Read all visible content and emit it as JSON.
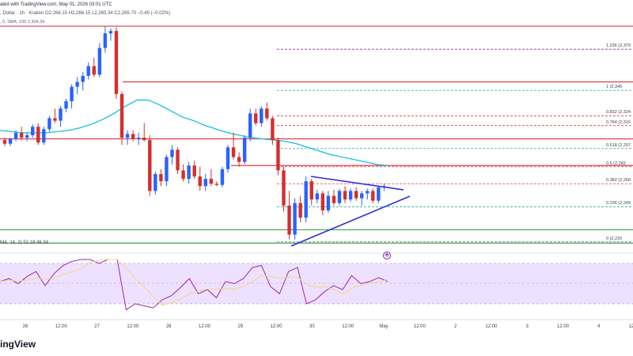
{
  "header": {
    "line1": "ated with TradingView.com, May 01, 2026 03:01 UTC",
    "line2": ", Dollar · 1h · Kraken  O2,266.15  H2,266.15  L2,265.34  C2,265.70  −0.45 (−0.02%)",
    "line3": ", 0, SMA, 100   2,304.34"
  },
  "colors": {
    "bull": "#2962ff",
    "bear": "#d32f2f",
    "sma": "#26c6da",
    "trendline": "#2f2fd9",
    "resistance": "#e03c4b",
    "support": "#43a047",
    "rsi_band": "#ede1ff",
    "rsi_line": "#9c27b0",
    "rsi_ma": "#f5d77d"
  },
  "fib_levels": [
    {
      "label": "1.236 (2,379",
      "value": 2379,
      "color": "#9c27b0"
    },
    {
      "label": "1 (2,345",
      "value": 2345,
      "color": "#26a69a"
    },
    {
      "label": "0.832 (2,324",
      "value": 2324,
      "color": "#e03c4b"
    },
    {
      "label": "0.764 (2,316",
      "value": 2316,
      "color": "#e03c4b"
    },
    {
      "label": "0.618 (2,297",
      "value": 2297,
      "color": "#26a69a"
    },
    {
      "label": "0.5 (2,282",
      "value": 2282,
      "color": "#e03c4b"
    },
    {
      "label": "0.382 (2,268",
      "value": 2268,
      "color": "#e03c4b"
    },
    {
      "label": "0.236 (2,249",
      "value": 2249,
      "color": "#26a69a"
    },
    {
      "label": "0 (2,220",
      "value": 2220,
      "color": "#757575"
    }
  ],
  "rsi": {
    "label": "MA, 14, 2)  52.18  46.34"
  },
  "x_ticks": [
    "26",
    "12:00",
    "27",
    "12:00",
    "28",
    "12:00",
    "29",
    "12:00",
    "30",
    "12:00",
    "May",
    "12:00",
    "2",
    "12:00",
    "3",
    "12:00",
    "4",
    "12:00"
  ],
  "brand": "ingView",
  "chart_data": {
    "type": "candlestick",
    "timeframe": "1h",
    "x_labels": [
      "26",
      "12:00",
      "27",
      "12:00",
      "28",
      "12:00",
      "29",
      "12:00",
      "30",
      "12:00",
      "May",
      "12:00",
      "2",
      "12:00",
      "3",
      "12:00",
      "4",
      "12:00"
    ],
    "y_range": [
      2212,
      2400
    ],
    "ohlc": [
      [
        2304,
        2306,
        2299,
        2301
      ],
      [
        2301,
        2306,
        2299,
        2305
      ],
      [
        2305,
        2312,
        2303,
        2310
      ],
      [
        2310,
        2315,
        2304,
        2306
      ],
      [
        2306,
        2310,
        2303,
        2308
      ],
      [
        2308,
        2317,
        2306,
        2315
      ],
      [
        2315,
        2318,
        2300,
        2302
      ],
      [
        2302,
        2315,
        2300,
        2313
      ],
      [
        2313,
        2324,
        2311,
        2322
      ],
      [
        2322,
        2330,
        2318,
        2320
      ],
      [
        2320,
        2332,
        2315,
        2330
      ],
      [
        2330,
        2338,
        2327,
        2336
      ],
      [
        2336,
        2350,
        2330,
        2348
      ],
      [
        2348,
        2356,
        2342,
        2352
      ],
      [
        2352,
        2360,
        2345,
        2357
      ],
      [
        2357,
        2368,
        2354,
        2365
      ],
      [
        2365,
        2372,
        2356,
        2358
      ],
      [
        2358,
        2384,
        2356,
        2380
      ],
      [
        2380,
        2398,
        2376,
        2392
      ],
      [
        2392,
        2396,
        2386,
        2394
      ],
      [
        2394,
        2397,
        2338,
        2342
      ],
      [
        2342,
        2344,
        2300,
        2306
      ],
      [
        2306,
        2312,
        2300,
        2309
      ],
      [
        2309,
        2312,
        2303,
        2305
      ],
      [
        2305,
        2310,
        2300,
        2306
      ],
      [
        2306,
        2318,
        2303,
        2304
      ],
      [
        2304,
        2308,
        2258,
        2262
      ],
      [
        2262,
        2278,
        2259,
        2276
      ],
      [
        2276,
        2280,
        2266,
        2270
      ],
      [
        2270,
        2292,
        2266,
        2290
      ],
      [
        2290,
        2300,
        2284,
        2296
      ],
      [
        2296,
        2298,
        2276,
        2279
      ],
      [
        2279,
        2284,
        2270,
        2272
      ],
      [
        2272,
        2286,
        2268,
        2283
      ],
      [
        2283,
        2287,
        2272,
        2274
      ],
      [
        2274,
        2282,
        2262,
        2266
      ],
      [
        2266,
        2276,
        2262,
        2272
      ],
      [
        2272,
        2280,
        2266,
        2268
      ],
      [
        2268,
        2270,
        2266,
        2267
      ],
      [
        2267,
        2282,
        2265,
        2280
      ],
      [
        2280,
        2300,
        2277,
        2298
      ],
      [
        2298,
        2310,
        2288,
        2290
      ],
      [
        2290,
        2294,
        2282,
        2286
      ],
      [
        2286,
        2308,
        2284,
        2306
      ],
      [
        2306,
        2330,
        2303,
        2326
      ],
      [
        2326,
        2330,
        2316,
        2318
      ],
      [
        2318,
        2332,
        2315,
        2330
      ],
      [
        2330,
        2335,
        2320,
        2322
      ],
      [
        2322,
        2324,
        2300,
        2304
      ],
      [
        2304,
        2306,
        2275,
        2279
      ],
      [
        2279,
        2282,
        2245,
        2250
      ],
      [
        2250,
        2262,
        2222,
        2226
      ],
      [
        2226,
        2256,
        2222,
        2252
      ],
      [
        2252,
        2258,
        2236,
        2240
      ],
      [
        2240,
        2274,
        2236,
        2270
      ],
      [
        2270,
        2272,
        2250,
        2255
      ],
      [
        2255,
        2263,
        2252,
        2260
      ],
      [
        2260,
        2262,
        2242,
        2246
      ],
      [
        2246,
        2262,
        2244,
        2258
      ],
      [
        2258,
        2263,
        2250,
        2252
      ],
      [
        2252,
        2264,
        2250,
        2262
      ],
      [
        2262,
        2266,
        2252,
        2255
      ],
      [
        2255,
        2264,
        2253,
        2262
      ],
      [
        2262,
        2265,
        2254,
        2256
      ],
      [
        2256,
        2262,
        2250,
        2260
      ],
      [
        2260,
        2264,
        2255,
        2262
      ],
      [
        2262,
        2264,
        2252,
        2254
      ],
      [
        2254,
        2266,
        2252,
        2265
      ],
      [
        2265,
        2268,
        2262,
        2266
      ]
    ],
    "sma_100": [
      2312,
      2311,
      2310,
      2310,
      2310,
      2311,
      2312,
      2314,
      2317,
      2321,
      2326,
      2332,
      2337,
      2337,
      2333,
      2328,
      2323,
      2320,
      2316,
      2313,
      2310,
      2308,
      2306,
      2305,
      2304,
      2303,
      2301,
      2298,
      2295,
      2292,
      2290,
      2288,
      2286,
      2284,
      2283
    ],
    "rsi": [
      52,
      55,
      50,
      57,
      62,
      48,
      60,
      68,
      72,
      75,
      80,
      70,
      74,
      78,
      24,
      30,
      28,
      26,
      34,
      38,
      46,
      55,
      40,
      44,
      36,
      52,
      50,
      55,
      66,
      68,
      47,
      40,
      62,
      66,
      30,
      34,
      42,
      48,
      44,
      58,
      50,
      52,
      56,
      52
    ]
  }
}
